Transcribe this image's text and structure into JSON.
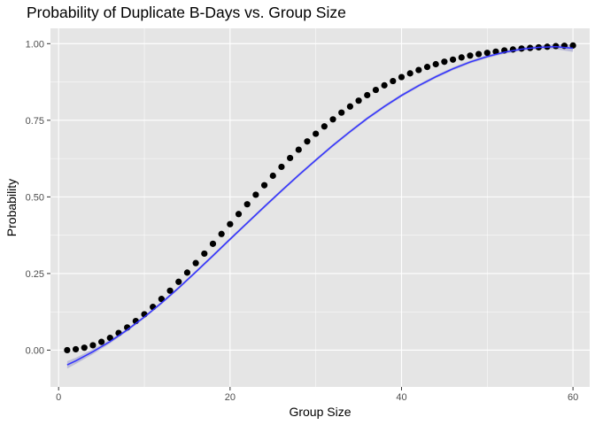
{
  "chart_data": {
    "type": "scatter",
    "title": "Probability of Duplicate B-Days vs. Group Size",
    "xlabel": "Group Size",
    "ylabel": "Probability",
    "xlim": [
      -0.95,
      61.95
    ],
    "ylim": [
      -0.12,
      1.05
    ],
    "x_ticks": [
      0,
      20,
      40,
      60
    ],
    "y_ticks": [
      0.0,
      0.25,
      0.5,
      0.75,
      1.0
    ],
    "x_tick_labels": [
      "0",
      "20",
      "40",
      "60"
    ],
    "y_tick_labels": [
      "0.00",
      "0.25",
      "0.50",
      "0.75",
      "1.00"
    ],
    "grid": true,
    "background": "#e5e5e5",
    "grid_major_color": "#ffffff",
    "point_color": "#000000",
    "smooth_color": "#3333ff",
    "band_color": "#9999cc",
    "series": [
      {
        "type": "points",
        "x": [
          1,
          2,
          3,
          4,
          5,
          6,
          7,
          8,
          9,
          10,
          11,
          12,
          13,
          14,
          15,
          16,
          17,
          18,
          19,
          20,
          21,
          22,
          23,
          24,
          25,
          26,
          27,
          28,
          29,
          30,
          31,
          32,
          33,
          34,
          35,
          36,
          37,
          38,
          39,
          40,
          41,
          42,
          43,
          44,
          45,
          46,
          47,
          48,
          49,
          50,
          51,
          52,
          53,
          54,
          55,
          56,
          57,
          58,
          59,
          60
        ],
        "y": [
          0.0,
          0.003,
          0.008,
          0.016,
          0.027,
          0.04,
          0.056,
          0.074,
          0.095,
          0.117,
          0.141,
          0.167,
          0.194,
          0.223,
          0.253,
          0.284,
          0.315,
          0.347,
          0.379,
          0.411,
          0.444,
          0.476,
          0.507,
          0.538,
          0.569,
          0.598,
          0.627,
          0.654,
          0.681,
          0.706,
          0.73,
          0.753,
          0.775,
          0.795,
          0.814,
          0.832,
          0.849,
          0.864,
          0.878,
          0.891,
          0.903,
          0.914,
          0.924,
          0.933,
          0.941,
          0.948,
          0.955,
          0.961,
          0.966,
          0.97,
          0.974,
          0.978,
          0.981,
          0.984,
          0.986,
          0.988,
          0.99,
          0.992,
          0.993,
          0.994
        ]
      },
      {
        "type": "smooth",
        "x": [
          1,
          2,
          4,
          6,
          8,
          10,
          12,
          14,
          16,
          18,
          20,
          22,
          24,
          26,
          28,
          30,
          32,
          34,
          36,
          38,
          40,
          42,
          44,
          46,
          48,
          50,
          52,
          54,
          56,
          58,
          60
        ],
        "y": [
          -0.048,
          -0.035,
          -0.005,
          0.028,
          0.066,
          0.108,
          0.154,
          0.203,
          0.255,
          0.308,
          0.362,
          0.415,
          0.468,
          0.52,
          0.571,
          0.62,
          0.668,
          0.713,
          0.756,
          0.795,
          0.831,
          0.863,
          0.892,
          0.918,
          0.94,
          0.958,
          0.972,
          0.982,
          0.988,
          0.99,
          0.985
        ],
        "band": [
          0.012,
          0.01,
          0.008,
          0.006,
          0.005,
          0.005,
          0.005,
          0.005,
          0.005,
          0.005,
          0.005,
          0.005,
          0.005,
          0.005,
          0.005,
          0.005,
          0.005,
          0.005,
          0.005,
          0.005,
          0.005,
          0.005,
          0.005,
          0.005,
          0.005,
          0.005,
          0.005,
          0.005,
          0.006,
          0.008,
          0.012
        ]
      }
    ]
  }
}
